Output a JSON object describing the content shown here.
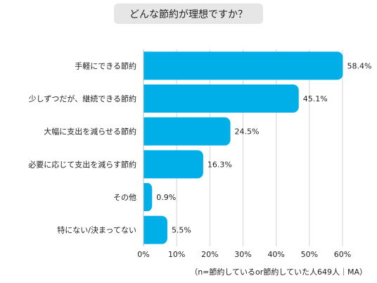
{
  "chart_data": {
    "type": "bar",
    "orientation": "horizontal",
    "title": "どんな節約が理想ですか？",
    "categories": [
      "手軽にできる節約",
      "少しずつだが、継続できる節約",
      "大幅に支出を減らせる節約",
      "必要に応じて支出を減らす節約",
      "その他",
      "特にない/決まってない"
    ],
    "values": [
      58.4,
      45.1,
      24.5,
      16.3,
      0.9,
      5.5
    ],
    "value_labels": [
      "58.4%",
      "45.1%",
      "24.5%",
      "16.3%",
      "0.9%",
      "5.5%"
    ],
    "xlim": [
      0,
      60
    ],
    "x_ticks": [
      0,
      10,
      20,
      30,
      40,
      50,
      60
    ],
    "x_tick_labels": [
      "0%",
      "10%",
      "20%",
      "30%",
      "40%",
      "50%",
      "60%"
    ],
    "grid": "vertical",
    "bar_color": "#00aee8",
    "note": "（n=節約しているor節約していた人649人｜MA）"
  }
}
